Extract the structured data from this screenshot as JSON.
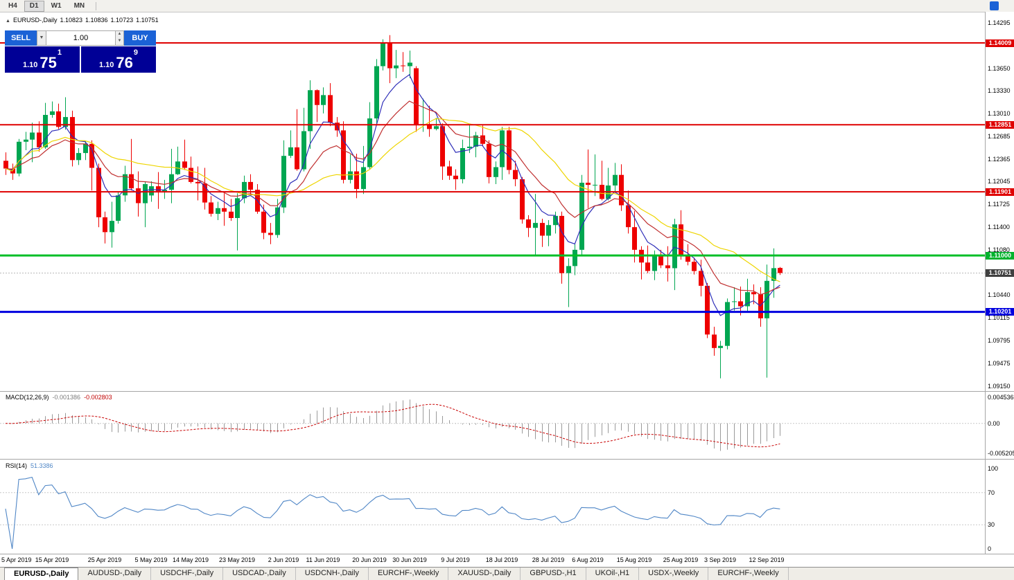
{
  "toolbar": {
    "timeframes": [
      {
        "label": "H4",
        "active": false
      },
      {
        "label": "D1",
        "active": true
      },
      {
        "label": "W1",
        "active": false
      },
      {
        "label": "MN",
        "active": false
      }
    ]
  },
  "icons": {
    "dropdown": "▼",
    "spin_up": "▲",
    "spin_down": "▼",
    "collapse": "▲"
  },
  "chart_header": {
    "collapse_icon": "▲",
    "symbol": "EURUSD-,Daily",
    "open": "1.10823",
    "high": "1.10836",
    "low": "1.10723",
    "close": "1.10751"
  },
  "trade_panel": {
    "sell_label": "SELL",
    "buy_label": "BUY",
    "volume_value": "1.00",
    "bid": {
      "prefix": "1.10",
      "big": "75",
      "sup": "1"
    },
    "ask": {
      "prefix": "1.10",
      "big": "76",
      "sup": "9"
    },
    "button_color": "#1B62D6",
    "price_bg": "#000096"
  },
  "badge_colors": {
    "red": "#DF0000",
    "green": "#00B22D",
    "blue": "#0000DF",
    "dark": "#404040"
  },
  "price_axis": {
    "labels": [
      {
        "text": "1.14295",
        "price": 1.14295,
        "badge": null
      },
      {
        "text": "1.14009",
        "price": 1.14009,
        "badge": "red"
      },
      {
        "text": "1.13650",
        "price": 1.1365,
        "badge": null
      },
      {
        "text": "1.13330",
        "price": 1.1333,
        "badge": null
      },
      {
        "text": "1.13010",
        "price": 1.1301,
        "badge": null
      },
      {
        "text": "1.12851",
        "price": 1.12851,
        "badge": "red"
      },
      {
        "text": "1.12685",
        "price": 1.12685,
        "badge": null
      },
      {
        "text": "1.12365",
        "price": 1.12365,
        "badge": null
      },
      {
        "text": "1.12045",
        "price": 1.12045,
        "badge": null
      },
      {
        "text": "1.11901",
        "price": 1.11901,
        "badge": "red"
      },
      {
        "text": "1.11725",
        "price": 1.11725,
        "badge": null
      },
      {
        "text": "1.11400",
        "price": 1.114,
        "badge": null
      },
      {
        "text": "1.11080",
        "price": 1.1108,
        "badge": null
      },
      {
        "text": "1.11000",
        "price": 1.11,
        "badge": "green"
      },
      {
        "text": "1.10751",
        "price": 1.10751,
        "badge": "dark"
      },
      {
        "text": "1.10440",
        "price": 1.1044,
        "badge": null
      },
      {
        "text": "1.10201",
        "price": 1.10201,
        "badge": "blue"
      },
      {
        "text": "1.10115",
        "price": 1.10115,
        "badge": null
      },
      {
        "text": "1.09795",
        "price": 1.09795,
        "badge": null
      },
      {
        "text": "1.09475",
        "price": 1.09475,
        "badge": null
      },
      {
        "text": "1.09150",
        "price": 1.0915,
        "badge": null
      }
    ]
  },
  "chart_data": {
    "type": "candlestick",
    "symbol": "EURUSD",
    "timeframe": "Daily",
    "price_range": {
      "top": 1.1445,
      "bottom": 1.0908
    },
    "current_price": 1.10751,
    "colors": {
      "up": "#00A651",
      "down": "#EE0000",
      "background": "#FFFFFF",
      "current_price_line": "#B8B8B8"
    },
    "horizontal_lines": [
      {
        "price": 1.14009,
        "color": "#DF0000",
        "thickness": 2,
        "role": "resistance"
      },
      {
        "price": 1.12851,
        "color": "#DF0000",
        "thickness": 2,
        "role": "resistance"
      },
      {
        "price": 1.11901,
        "color": "#DF0000",
        "thickness": 2,
        "role": "resistance"
      },
      {
        "price": 1.11,
        "color": "#00BE26",
        "thickness": 3,
        "role": "support"
      },
      {
        "price": 1.10201,
        "color": "#0000DF",
        "thickness": 3,
        "role": "support"
      }
    ],
    "moving_averages": [
      {
        "period": 6,
        "method": "ema",
        "color": "#2E2EB8"
      },
      {
        "period": 14,
        "method": "ema",
        "color": "#C03030"
      },
      {
        "period": 24,
        "method": "sma",
        "color": "#EED500"
      }
    ],
    "candles": [
      [
        1.1234,
        1.1246,
        1.1214,
        1.1223
      ],
      [
        1.1223,
        1.123,
        1.1207,
        1.1216
      ],
      [
        1.1216,
        1.1265,
        1.1212,
        1.1261
      ],
      [
        1.1261,
        1.1275,
        1.1249,
        1.1264
      ],
      [
        1.1264,
        1.1288,
        1.1232,
        1.1274
      ],
      [
        1.1274,
        1.129,
        1.1247,
        1.1253
      ],
      [
        1.1253,
        1.1316,
        1.1251,
        1.1299
      ],
      [
        1.1299,
        1.1318,
        1.1295,
        1.1304
      ],
      [
        1.1304,
        1.1315,
        1.1279,
        1.1282
      ],
      [
        1.1282,
        1.1324,
        1.1278,
        1.1296
      ],
      [
        1.1296,
        1.1305,
        1.1226,
        1.1235
      ],
      [
        1.1235,
        1.1252,
        1.1228,
        1.1245
      ],
      [
        1.1245,
        1.1262,
        1.1235,
        1.1258
      ],
      [
        1.1258,
        1.1263,
        1.1192,
        1.1224
      ],
      [
        1.1224,
        1.123,
        1.114,
        1.1154
      ],
      [
        1.1154,
        1.1162,
        1.1117,
        1.1133
      ],
      [
        1.1133,
        1.1176,
        1.1111,
        1.1149
      ],
      [
        1.1149,
        1.119,
        1.1145,
        1.1185
      ],
      [
        1.1185,
        1.1227,
        1.1176,
        1.1215
      ],
      [
        1.1215,
        1.1265,
        1.1192,
        1.1195
      ],
      [
        1.1195,
        1.1219,
        1.1155,
        1.1174
      ],
      [
        1.1174,
        1.1205,
        1.114,
        1.1201
      ],
      [
        1.1185,
        1.1205,
        1.1176,
        1.1198
      ],
      [
        1.1198,
        1.1218,
        1.1166,
        1.1191
      ],
      [
        1.1191,
        1.1207,
        1.118,
        1.1193
      ],
      [
        1.1193,
        1.1251,
        1.1174,
        1.1215
      ],
      [
        1.1215,
        1.1254,
        1.1214,
        1.1233
      ],
      [
        1.1233,
        1.1264,
        1.1221,
        1.1224
      ],
      [
        1.1224,
        1.124,
        1.1202,
        1.1204
      ],
      [
        1.1204,
        1.1226,
        1.1178,
        1.1202
      ],
      [
        1.1202,
        1.1224,
        1.1165,
        1.1175
      ],
      [
        1.1175,
        1.1184,
        1.1155,
        1.1159
      ],
      [
        1.1159,
        1.1176,
        1.115,
        1.1167
      ],
      [
        1.1167,
        1.1188,
        1.1142,
        1.1162
      ],
      [
        1.1162,
        1.118,
        1.1149,
        1.1153
      ],
      [
        1.1153,
        1.1188,
        1.1107,
        1.1181
      ],
      [
        1.1181,
        1.1213,
        1.1174,
        1.1204
      ],
      [
        1.1204,
        1.1215,
        1.1184,
        1.1193
      ],
      [
        1.1193,
        1.1201,
        1.1159,
        1.1162
      ],
      [
        1.1162,
        1.1172,
        1.1123,
        1.1132
      ],
      [
        1.1132,
        1.1146,
        1.1116,
        1.1129
      ],
      [
        1.1129,
        1.118,
        1.1125,
        1.1168
      ],
      [
        1.1168,
        1.1263,
        1.116,
        1.1241
      ],
      [
        1.1241,
        1.1277,
        1.1238,
        1.1253
      ],
      [
        1.1253,
        1.1307,
        1.122,
        1.1222
      ],
      [
        1.1222,
        1.1309,
        1.1219,
        1.1276
      ],
      [
        1.1276,
        1.1348,
        1.1251,
        1.1334
      ],
      [
        1.1334,
        1.1335,
        1.1289,
        1.1313
      ],
      [
        1.1313,
        1.1338,
        1.1301,
        1.1327
      ],
      [
        1.1327,
        1.1344,
        1.1283,
        1.1288
      ],
      [
        1.1288,
        1.1296,
        1.1268,
        1.1277
      ],
      [
        1.1277,
        1.129,
        1.1202,
        1.1207
      ],
      [
        1.1207,
        1.1243,
        1.1202,
        1.1219
      ],
      [
        1.1219,
        1.1244,
        1.1181,
        1.1194
      ],
      [
        1.1194,
        1.1255,
        1.1187,
        1.1225
      ],
      [
        1.1225,
        1.1317,
        1.1222,
        1.1294
      ],
      [
        1.1294,
        1.1378,
        1.1285,
        1.1368
      ],
      [
        1.1368,
        1.1406,
        1.1362,
        1.1401
      ],
      [
        1.1401,
        1.1412,
        1.1344,
        1.1365
      ],
      [
        1.1365,
        1.1391,
        1.1351,
        1.1369
      ],
      [
        1.1369,
        1.1388,
        1.136,
        1.1368
      ],
      [
        1.1368,
        1.139,
        1.1351,
        1.1373
      ],
      [
        1.1365,
        1.1368,
        1.1275,
        1.1285
      ],
      [
        1.1285,
        1.1322,
        1.1275,
        1.1286
      ],
      [
        1.1286,
        1.1312,
        1.1268,
        1.1279
      ],
      [
        1.1279,
        1.1295,
        1.1277,
        1.1283
      ],
      [
        1.1283,
        1.1287,
        1.1207,
        1.1226
      ],
      [
        1.1226,
        1.1234,
        1.1207,
        1.1213
      ],
      [
        1.1213,
        1.1222,
        1.1193,
        1.1208
      ],
      [
        1.1208,
        1.1264,
        1.1202,
        1.1252
      ],
      [
        1.1252,
        1.1286,
        1.1245,
        1.1254
      ],
      [
        1.1254,
        1.1275,
        1.1239,
        1.127
      ],
      [
        1.127,
        1.1284,
        1.1255,
        1.1258
      ],
      [
        1.1258,
        1.1263,
        1.1202,
        1.1211
      ],
      [
        1.1211,
        1.1233,
        1.1201,
        1.1225
      ],
      [
        1.1225,
        1.1282,
        1.1207,
        1.1277
      ],
      [
        1.1277,
        1.1282,
        1.1215,
        1.1221
      ],
      [
        1.1221,
        1.1234,
        1.1198,
        1.1208
      ],
      [
        1.1208,
        1.1211,
        1.1145,
        1.1151
      ],
      [
        1.1151,
        1.1157,
        1.1126,
        1.1139
      ],
      [
        1.1139,
        1.1187,
        1.1101,
        1.1146
      ],
      [
        1.1146,
        1.1152,
        1.1112,
        1.1128
      ],
      [
        1.1128,
        1.115,
        1.1113,
        1.1143
      ],
      [
        1.1143,
        1.1162,
        1.1131,
        1.1156
      ],
      [
        1.1156,
        1.1162,
        1.106,
        1.1075
      ],
      [
        1.1075,
        1.1096,
        1.1027,
        1.1085
      ],
      [
        1.1085,
        1.1116,
        1.1072,
        1.1108
      ],
      [
        1.1108,
        1.1214,
        1.1101,
        1.1203
      ],
      [
        1.1203,
        1.125,
        1.1167,
        1.12
      ],
      [
        1.12,
        1.1243,
        1.1184,
        1.12
      ],
      [
        1.12,
        1.1234,
        1.1178,
        1.118
      ],
      [
        1.118,
        1.1224,
        1.1178,
        1.1199
      ],
      [
        1.1199,
        1.1231,
        1.1189,
        1.1214
      ],
      [
        1.1214,
        1.1229,
        1.1163,
        1.1171
      ],
      [
        1.1171,
        1.1192,
        1.1131,
        1.114
      ],
      [
        1.114,
        1.1163,
        1.109,
        1.1108
      ],
      [
        1.1108,
        1.1113,
        1.1066,
        1.109
      ],
      [
        1.109,
        1.1114,
        1.1075,
        1.1078
      ],
      [
        1.1078,
        1.1107,
        1.1065,
        1.1099
      ],
      [
        1.1099,
        1.1108,
        1.1082,
        1.1086
      ],
      [
        1.1086,
        1.1113,
        1.1063,
        1.1082
      ],
      [
        1.1082,
        1.1152,
        1.1051,
        1.1144
      ],
      [
        1.1144,
        1.1164,
        1.1094,
        1.1101
      ],
      [
        1.1101,
        1.1116,
        1.1086,
        1.1091
      ],
      [
        1.1091,
        1.1097,
        1.1073,
        1.1078
      ],
      [
        1.1078,
        1.1094,
        1.1042,
        1.1057
      ],
      [
        1.1057,
        1.1061,
        1.0983,
        1.0988
      ],
      [
        1.0988,
        1.0999,
        1.0958,
        1.0969
      ],
      [
        1.0969,
        1.0979,
        1.0926,
        1.0972
      ],
      [
        1.0972,
        1.1039,
        1.0967,
        1.1034
      ],
      [
        1.1034,
        1.1055,
        1.1022,
        1.1035
      ],
      [
        1.1035,
        1.1056,
        1.1015,
        1.1028
      ],
      [
        1.1028,
        1.1067,
        1.1019,
        1.1048
      ],
      [
        1.1048,
        1.1059,
        1.1031,
        1.1045
      ],
      [
        1.1045,
        1.1055,
        1.0999,
        1.1011
      ],
      [
        1.1011,
        1.1087,
        1.0927,
        1.1064
      ],
      [
        1.1064,
        1.111,
        1.104,
        1.1082
      ],
      [
        1.10823,
        1.10836,
        1.10723,
        1.10751
      ]
    ]
  },
  "macd_panel": {
    "title": "MACD(12,26,9)",
    "value": "-0.001386",
    "signal_value": "-0.002803",
    "params": {
      "fast": 12,
      "slow": 26,
      "signal": 9
    },
    "range": {
      "top": 0.0055,
      "bottom": -0.00617
    },
    "axis_labels": [
      {
        "text": "0.004536",
        "value": 0.004536
      },
      {
        "text": "0.00",
        "value": 0
      },
      {
        "text": "-0.005205",
        "value": -0.005205
      }
    ],
    "histogram_color": "#9A9A9A",
    "signal_color": "#C80000"
  },
  "rsi_panel": {
    "title": "RSI(14)",
    "value": "51.3386",
    "period": 14,
    "levels": [
      70,
      30
    ],
    "axis_labels": [
      {
        "text": "100",
        "value": 100
      },
      {
        "text": "70",
        "value": 70
      },
      {
        "text": "30",
        "value": 30
      },
      {
        "text": "0",
        "value": 0
      }
    ],
    "line_color": "#4F86C6"
  },
  "date_axis": [
    {
      "label": "5 Apr 2019",
      "index": 1
    },
    {
      "label": "15 Apr 2019",
      "index": 7
    },
    {
      "label": "25 Apr 2019",
      "index": 15
    },
    {
      "label": "5 May 2019",
      "index": 22
    },
    {
      "label": "14 May 2019",
      "index": 28
    },
    {
      "label": "23 May 2019",
      "index": 35
    },
    {
      "label": "2 Jun 2019",
      "index": 42
    },
    {
      "label": "11 Jun 2019",
      "index": 48
    },
    {
      "label": "20 Jun 2019",
      "index": 55
    },
    {
      "label": "30 Jun 2019",
      "index": 61
    },
    {
      "label": "9 Jul 2019",
      "index": 68
    },
    {
      "label": "18 Jul 2019",
      "index": 75
    },
    {
      "label": "28 Jul 2019",
      "index": 82
    },
    {
      "label": "6 Aug 2019",
      "index": 88
    },
    {
      "label": "15 Aug 2019",
      "index": 95
    },
    {
      "label": "25 Aug 2019",
      "index": 102
    },
    {
      "label": "3 Sep 2019",
      "index": 108
    },
    {
      "label": "12 Sep 2019",
      "index": 115
    }
  ],
  "tabs": [
    {
      "label": "EURUSD-,Daily",
      "active": true
    },
    {
      "label": "AUDUSD-,Daily",
      "active": false
    },
    {
      "label": "USDCHF-,Daily",
      "active": false
    },
    {
      "label": "USDCAD-,Daily",
      "active": false
    },
    {
      "label": "USDCNH-,Daily",
      "active": false
    },
    {
      "label": "EURCHF-,Weekly",
      "active": false
    },
    {
      "label": "XAUUSD-,Daily",
      "active": false
    },
    {
      "label": "GBPUSD-,H1",
      "active": false
    },
    {
      "label": "UKOil-,H1",
      "active": false
    },
    {
      "label": "USDX-,Weekly",
      "active": false
    },
    {
      "label": "EURCHF-,Weekly",
      "active": false
    }
  ]
}
